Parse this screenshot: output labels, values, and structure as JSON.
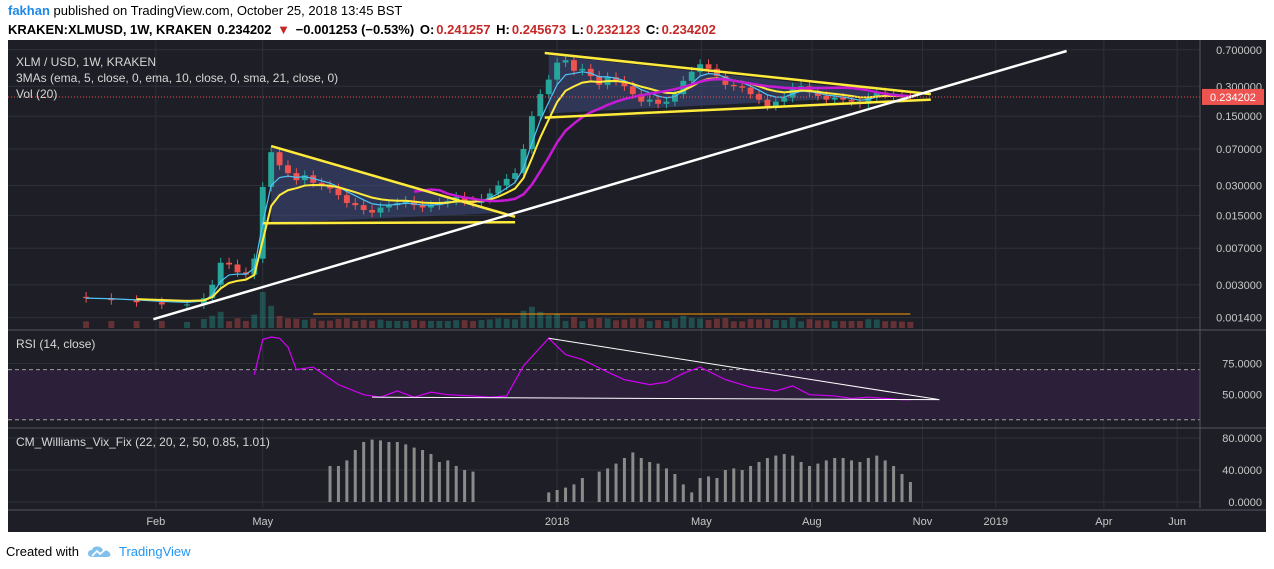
{
  "header": {
    "author": "fakhan",
    "published": "published on TradingView.com, October 25, 2018 13:45 BST",
    "symbol": "KRAKEN:XLMUSD, 1W, KRAKEN",
    "last": "0.234202",
    "change_arrow": "▼",
    "change": "−0.001253 (−0.53%)",
    "o_label": "O:",
    "o": "0.241257",
    "h_label": "H:",
    "h": "0.245673",
    "l_label": "L:",
    "l": "0.232123",
    "c_label": "C:",
    "c": "0.234202"
  },
  "legend": {
    "title": "XLM / USD, 1W, KRAKEN",
    "mas": "3MAs (ema, 5, close, 0, ema, 10, close, 0, sma, 21, close, 0)",
    "vol": "Vol (20)"
  },
  "footer": {
    "created_with": "Created with",
    "brand": "TradingView",
    "logo_icon": "tradingview-cloud-icon"
  },
  "colors": {
    "up": "#26a69a",
    "down": "#ef5350",
    "panel": "#1e1f26",
    "rsi": "#d500f9",
    "band": "#2c1f3a",
    "trend": "#ffeb3b",
    "grid": "#2e3038"
  },
  "chart_data": [
    {
      "type": "candlestick",
      "title": "XLM / USD, 1W, KRAKEN",
      "scale": "log",
      "y_ticks": [
        "0.700000",
        "0.300000",
        "0.150000",
        "0.070000",
        "0.030000",
        "0.015000",
        "0.007000",
        "0.003000",
        "0.001400"
      ],
      "y_tick_values": [
        0.7,
        0.3,
        0.15,
        0.07,
        0.03,
        0.015,
        0.007,
        0.003,
        0.0014
      ],
      "x_ticks": [
        "Feb",
        "May",
        "2018",
        "May",
        "Aug",
        "Nov",
        "2019",
        "Apr",
        "Jun"
      ],
      "x_tick_dates": [
        "2017-02-01",
        "2017-05-01",
        "2018-01-01",
        "2018-05-01",
        "2018-08-01",
        "2018-11-01",
        "2019-01-01",
        "2019-04-01",
        "2019-06-01"
      ],
      "x_range": [
        "2016-10-01",
        "2019-06-20"
      ],
      "ylim": [
        0.0011,
        0.8
      ],
      "last_price_label": "0.234202",
      "last_price": 0.234202,
      "series": [
        {
          "name": "close",
          "values": [
            [
              "2016-12-05",
              0.0022
            ],
            [
              "2016-12-26",
              0.0021
            ],
            [
              "2017-01-16",
              0.002
            ],
            [
              "2017-02-06",
              0.0019
            ],
            [
              "2017-02-27",
              0.0019
            ],
            [
              "2017-03-13",
              0.0022
            ],
            [
              "2017-03-20",
              0.003
            ],
            [
              "2017-03-27",
              0.005
            ],
            [
              "2017-04-03",
              0.0048
            ],
            [
              "2017-04-10",
              0.004
            ],
            [
              "2017-04-17",
              0.0038
            ],
            [
              "2017-04-24",
              0.0055
            ],
            [
              "2017-05-01",
              0.029
            ],
            [
              "2017-05-08",
              0.065
            ],
            [
              "2017-05-15",
              0.048
            ],
            [
              "2017-05-22",
              0.04
            ],
            [
              "2017-05-29",
              0.034
            ],
            [
              "2017-06-05",
              0.038
            ],
            [
              "2017-06-12",
              0.032
            ],
            [
              "2017-06-19",
              0.03
            ],
            [
              "2017-06-26",
              0.028
            ],
            [
              "2017-07-03",
              0.024
            ],
            [
              "2017-07-10",
              0.02
            ],
            [
              "2017-07-17",
              0.019
            ],
            [
              "2017-07-24",
              0.017
            ],
            [
              "2017-07-31",
              0.016
            ],
            [
              "2017-08-07",
              0.018
            ],
            [
              "2017-08-14",
              0.019
            ],
            [
              "2017-08-21",
              0.02
            ],
            [
              "2017-08-28",
              0.021
            ],
            [
              "2017-09-04",
              0.019
            ],
            [
              "2017-09-11",
              0.018
            ],
            [
              "2017-09-18",
              0.019
            ],
            [
              "2017-09-25",
              0.02
            ],
            [
              "2017-10-02",
              0.021
            ],
            [
              "2017-10-09",
              0.023
            ],
            [
              "2017-10-16",
              0.021
            ],
            [
              "2017-10-23",
              0.02
            ],
            [
              "2017-10-30",
              0.022
            ],
            [
              "2017-11-06",
              0.025
            ],
            [
              "2017-11-13",
              0.03
            ],
            [
              "2017-11-20",
              0.035
            ],
            [
              "2017-11-27",
              0.04
            ],
            [
              "2017-12-04",
              0.07
            ],
            [
              "2017-12-11",
              0.15
            ],
            [
              "2017-12-18",
              0.25
            ],
            [
              "2017-12-25",
              0.35
            ],
            [
              "2018-01-01",
              0.52
            ],
            [
              "2018-01-08",
              0.55
            ],
            [
              "2018-01-15",
              0.43
            ],
            [
              "2018-01-22",
              0.45
            ],
            [
              "2018-01-29",
              0.38
            ],
            [
              "2018-02-05",
              0.31
            ],
            [
              "2018-02-12",
              0.37
            ],
            [
              "2018-02-19",
              0.34
            ],
            [
              "2018-02-26",
              0.3
            ],
            [
              "2018-03-05",
              0.25
            ],
            [
              "2018-03-12",
              0.21
            ],
            [
              "2018-03-19",
              0.22
            ],
            [
              "2018-03-26",
              0.2
            ],
            [
              "2018-04-02",
              0.21
            ],
            [
              "2018-04-09",
              0.25
            ],
            [
              "2018-04-16",
              0.34
            ],
            [
              "2018-04-23",
              0.42
            ],
            [
              "2018-04-30",
              0.5
            ],
            [
              "2018-05-07",
              0.45
            ],
            [
              "2018-05-14",
              0.38
            ],
            [
              "2018-05-21",
              0.31
            ],
            [
              "2018-05-28",
              0.3
            ],
            [
              "2018-06-04",
              0.29
            ],
            [
              "2018-06-11",
              0.25
            ],
            [
              "2018-06-18",
              0.22
            ],
            [
              "2018-06-25",
              0.19
            ],
            [
              "2018-07-02",
              0.21
            ],
            [
              "2018-07-09",
              0.23
            ],
            [
              "2018-07-16",
              0.29
            ],
            [
              "2018-07-23",
              0.3
            ],
            [
              "2018-07-30",
              0.26
            ],
            [
              "2018-08-06",
              0.24
            ],
            [
              "2018-08-13",
              0.22
            ],
            [
              "2018-08-20",
              0.23
            ],
            [
              "2018-08-27",
              0.22
            ],
            [
              "2018-09-03",
              0.21
            ],
            [
              "2018-09-10",
              0.2
            ],
            [
              "2018-09-17",
              0.23
            ],
            [
              "2018-09-24",
              0.26
            ],
            [
              "2018-10-01",
              0.25
            ],
            [
              "2018-10-08",
              0.24
            ],
            [
              "2018-10-15",
              0.235
            ],
            [
              "2018-10-22",
              0.234202
            ]
          ]
        }
      ]
    },
    {
      "type": "line",
      "title": "RSI (14, close)",
      "y_ticks": [
        "75.0000",
        "50.0000"
      ],
      "y_tick_values": [
        75,
        50
      ],
      "ylim": [
        25,
        100
      ],
      "band": [
        30,
        70
      ],
      "series": [
        {
          "name": "RSI",
          "values": [
            [
              "2017-04-24",
              66
            ],
            [
              "2017-05-01",
              94
            ],
            [
              "2017-05-08",
              96
            ],
            [
              "2017-05-15",
              95
            ],
            [
              "2017-05-22",
              88
            ],
            [
              "2017-05-29",
              70
            ],
            [
              "2017-06-12",
              72
            ],
            [
              "2017-07-03",
              58
            ],
            [
              "2017-07-24",
              50
            ],
            [
              "2017-08-07",
              48
            ],
            [
              "2017-08-21",
              53
            ],
            [
              "2017-09-04",
              48
            ],
            [
              "2017-09-18",
              52
            ],
            [
              "2017-10-02",
              50
            ],
            [
              "2017-10-23",
              49
            ],
            [
              "2017-11-06",
              48
            ],
            [
              "2017-11-20",
              49
            ],
            [
              "2017-12-04",
              73
            ],
            [
              "2017-12-25",
              95
            ],
            [
              "2018-01-08",
              82
            ],
            [
              "2018-01-22",
              78
            ],
            [
              "2018-02-12",
              68
            ],
            [
              "2018-02-26",
              62
            ],
            [
              "2018-03-19",
              58
            ],
            [
              "2018-04-02",
              60
            ],
            [
              "2018-04-16",
              67
            ],
            [
              "2018-04-30",
              72
            ],
            [
              "2018-05-21",
              62
            ],
            [
              "2018-06-11",
              56
            ],
            [
              "2018-07-02",
              53
            ],
            [
              "2018-07-16",
              57
            ],
            [
              "2018-07-30",
              50
            ],
            [
              "2018-08-20",
              49
            ],
            [
              "2018-09-03",
              47
            ],
            [
              "2018-09-17",
              48
            ],
            [
              "2018-10-01",
              47
            ],
            [
              "2018-10-15",
              46
            ],
            [
              "2018-10-22",
              46
            ]
          ]
        }
      ]
    },
    {
      "type": "bar",
      "title": "CM_Williams_Vix_Fix (22, 20, 2, 50, 0.85, 1.01)",
      "y_ticks": [
        "80.0000",
        "40.0000",
        "0.0000"
      ],
      "y_tick_values": [
        80,
        40,
        0
      ],
      "ylim": [
        0,
        85
      ],
      "series": [
        {
          "name": "Vix Fix",
          "values": [
            [
              "2017-06-26",
              45
            ],
            [
              "2017-07-03",
              45
            ],
            [
              "2017-07-10",
              52
            ],
            [
              "2017-07-17",
              65
            ],
            [
              "2017-07-24",
              75
            ],
            [
              "2017-07-31",
              78
            ],
            [
              "2017-08-07",
              77
            ],
            [
              "2017-08-14",
              75
            ],
            [
              "2017-08-21",
              75
            ],
            [
              "2017-08-28",
              72
            ],
            [
              "2017-09-04",
              68
            ],
            [
              "2017-09-11",
              65
            ],
            [
              "2017-09-18",
              60
            ],
            [
              "2017-09-25",
              50
            ],
            [
              "2017-10-02",
              52
            ],
            [
              "2017-10-09",
              45
            ],
            [
              "2017-10-16",
              40
            ],
            [
              "2017-10-23",
              38
            ],
            [
              "2017-12-25",
              12
            ],
            [
              "2018-01-01",
              15
            ],
            [
              "2018-01-08",
              18
            ],
            [
              "2018-01-15",
              22
            ],
            [
              "2018-01-22",
              30
            ],
            [
              "2018-02-05",
              38
            ],
            [
              "2018-02-12",
              42
            ],
            [
              "2018-02-19",
              48
            ],
            [
              "2018-02-26",
              55
            ],
            [
              "2018-03-05",
              62
            ],
            [
              "2018-03-12",
              55
            ],
            [
              "2018-03-19",
              50
            ],
            [
              "2018-03-26",
              48
            ],
            [
              "2018-04-02",
              42
            ],
            [
              "2018-04-09",
              35
            ],
            [
              "2018-04-16",
              22
            ],
            [
              "2018-04-23",
              12
            ],
            [
              "2018-04-30",
              30
            ],
            [
              "2018-05-07",
              32
            ],
            [
              "2018-05-14",
              30
            ],
            [
              "2018-05-21",
              40
            ],
            [
              "2018-05-28",
              42
            ],
            [
              "2018-06-04",
              40
            ],
            [
              "2018-06-11",
              45
            ],
            [
              "2018-06-18",
              50
            ],
            [
              "2018-06-25",
              55
            ],
            [
              "2018-07-02",
              58
            ],
            [
              "2018-07-09",
              60
            ],
            [
              "2018-07-16",
              58
            ],
            [
              "2018-07-23",
              50
            ],
            [
              "2018-07-30",
              45
            ],
            [
              "2018-08-06",
              48
            ],
            [
              "2018-08-13",
              52
            ],
            [
              "2018-08-20",
              55
            ],
            [
              "2018-08-27",
              55
            ],
            [
              "2018-09-03",
              52
            ],
            [
              "2018-09-10",
              50
            ],
            [
              "2018-09-17",
              55
            ],
            [
              "2018-09-24",
              58
            ],
            [
              "2018-10-01",
              52
            ],
            [
              "2018-10-08",
              45
            ],
            [
              "2018-10-15",
              35
            ],
            [
              "2018-10-22",
              25
            ]
          ]
        }
      ]
    }
  ]
}
